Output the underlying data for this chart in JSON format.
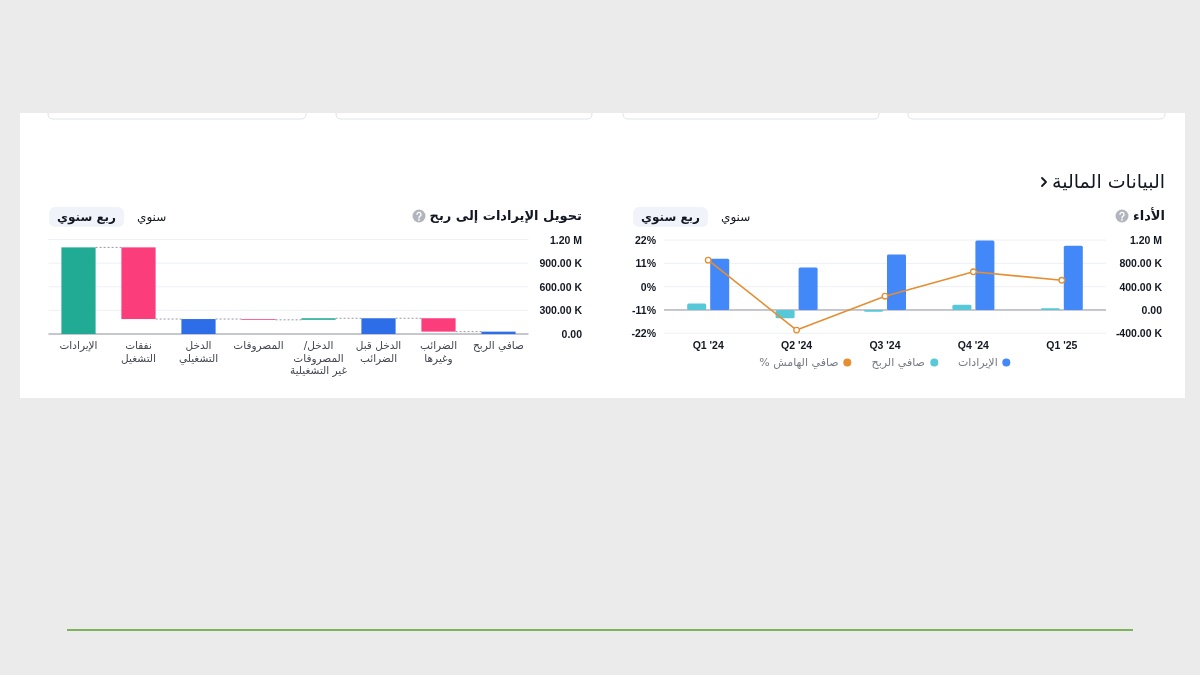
{
  "chart_data": [
    {
      "type": "other",
      "title": "البيانات المالية"
    },
    {
      "type": "bar",
      "title": "الأداء",
      "annotations": [
        "سنوي",
        "ربع سنوي"
      ],
      "categories": [
        "Q1 '24",
        "Q2 '24",
        "Q3 '24",
        "Q4 '24",
        "Q1 '25"
      ],
      "series": [
        {
          "name": "الإيرادات",
          "type": "bar",
          "axis": "y2",
          "color": "#4388f8",
          "values": [
            880000,
            730000,
            950000,
            1190000,
            1100000
          ]
        },
        {
          "name": "صافي الربح",
          "type": "bar",
          "axis": "y2",
          "color": "#56c8d8",
          "values": [
            110000,
            -140000,
            -30000,
            90000,
            30000
          ]
        },
        {
          "name": "صافي الهامش %",
          "type": "line",
          "color": "#e58e32",
          "values": [
            12.5,
            -20.5,
            -4.5,
            7,
            3
          ]
        }
      ],
      "marker": "circle",
      "ylim": [
        -22,
        22
      ],
      "yticks": [
        {
          "value": -22,
          "label": "-22%"
        },
        {
          "value": -11,
          "label": "-11%"
        },
        {
          "value": 0,
          "label": "0%"
        },
        {
          "value": 11,
          "label": "11%"
        },
        {
          "value": 22,
          "label": "22%"
        }
      ],
      "y2lim": [
        -400000,
        1200000
      ],
      "y2ticks": [
        {
          "value": -400000,
          "label": "-400.00 K"
        },
        {
          "value": 0,
          "label": "0.00"
        },
        {
          "value": 400000,
          "label": "400.00 K"
        },
        {
          "value": 800000,
          "label": "800.00 K"
        },
        {
          "value": 1200000,
          "label": "1.20 M"
        }
      ],
      "grid": "y",
      "legend": "bottom"
    },
    {
      "type": "bar",
      "title": "تحويل الإيرادات إلى ربح",
      "annotations": [
        "سنوي",
        "ربع سنوي"
      ],
      "categories": [
        "الإيرادات",
        "نفقات التشغيل",
        "الدخل التشغيلي",
        "المصروفات",
        "الدخل/ المصروفات غير التشغيلية",
        "الدخل قبل الضرائب",
        "الضرائب وغيرها",
        "صافي الربح"
      ],
      "values": [
        1100000,
        -910000,
        190000,
        -10000,
        20000,
        200000,
        -170000,
        30000
      ],
      "base": [
        0,
        1100000,
        0,
        190000,
        180000,
        0,
        200000,
        0
      ],
      "colors": [
        "#22ab94",
        "#fc3d7c",
        "#2d6ee8",
        "#fc3d7c",
        "#22ab94",
        "#2d6ee8",
        "#fc3d7c",
        "#2d6ee8"
      ],
      "ylim": [
        0,
        1200000
      ],
      "yticks": [
        {
          "value": 0,
          "label": "0.00"
        },
        {
          "value": 300000,
          "label": "300.00 K"
        },
        {
          "value": 600000,
          "label": "600.00 K"
        },
        {
          "value": 900000,
          "label": "900.00 K"
        },
        {
          "value": 1200000,
          "label": "1.20 M"
        }
      ],
      "grid": "y"
    }
  ]
}
